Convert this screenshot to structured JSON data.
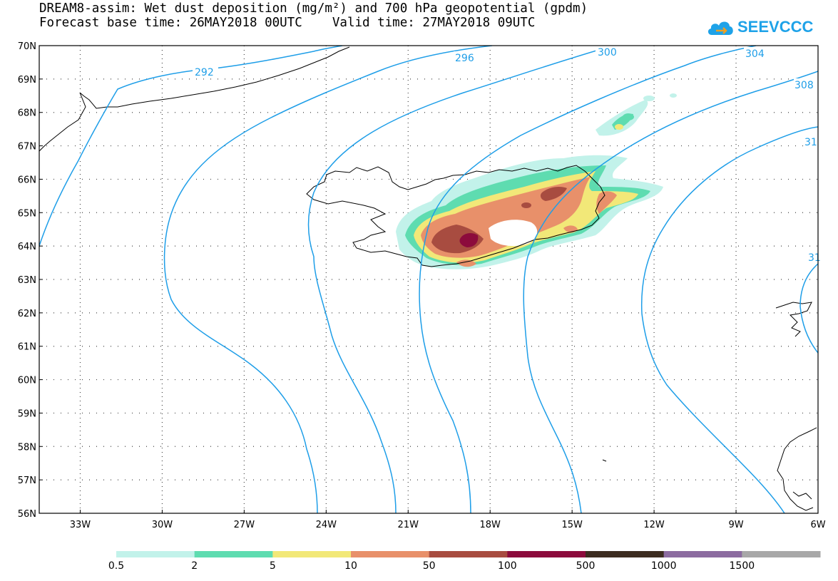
{
  "title": {
    "line1": "DREAM8-assim: Wet dust deposition (mg/m²) and 700 hPa geopotential (gpdm)",
    "line2": "Forecast base time: 26MAY2018 00UTC    Valid time: 27MAY2018 09UTC"
  },
  "logo": {
    "text": "SEEVCCC",
    "icon": "cloud-icon",
    "color": "#1ea2e8"
  },
  "map": {
    "lat_labels": [
      "70N",
      "69N",
      "68N",
      "67N",
      "66N",
      "65N",
      "64N",
      "63N",
      "62N",
      "61N",
      "60N",
      "59N",
      "58N",
      "57N",
      "56N"
    ],
    "lon_labels": [
      "33W",
      "30W",
      "27W",
      "24W",
      "21W",
      "18W",
      "15W",
      "12W",
      "9W",
      "6W"
    ],
    "lat_range": [
      56,
      70
    ],
    "lon_range": [
      -34.5,
      -6
    ],
    "grid": "dotted",
    "contour_color": "#1e9ee8",
    "contour_labels": [
      "292",
      "296",
      "300",
      "304",
      "308",
      "31",
      "31"
    ]
  },
  "legend": {
    "colors": [
      "#c2f2ea",
      "#5edcb0",
      "#f2e878",
      "#e8906a",
      "#a84c40",
      "#8c0b3c",
      "#3c2c20",
      "#8c6ca0",
      "#a8a8a8"
    ],
    "labels": [
      "0.5",
      "2",
      "5",
      "10",
      "50",
      "100",
      "500",
      "1000",
      "1500"
    ]
  }
}
